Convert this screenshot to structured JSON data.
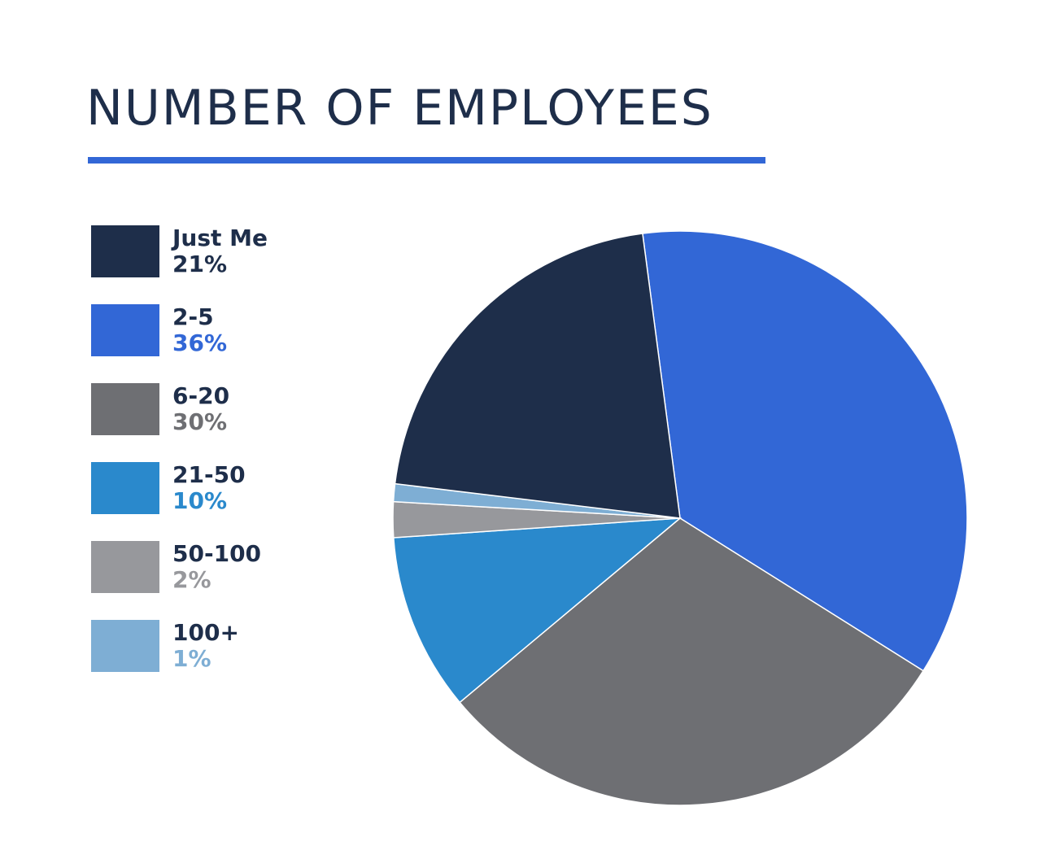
{
  "chart_data": {
    "type": "pie",
    "title": "NUMBER OF EMPLOYEES",
    "legend_position": "left",
    "accent_color": "#3267d6",
    "slices": [
      {
        "label": "Just Me",
        "value": 21,
        "value_label": "21%",
        "color": "#1e2e4a",
        "text_color": "#1e2e4a"
      },
      {
        "label": "2-5",
        "value": 36,
        "value_label": "36%",
        "color": "#3267d6",
        "text_color": "#3267d6"
      },
      {
        "label": "6-20",
        "value": 30,
        "value_label": "30%",
        "color": "#6e6f73",
        "text_color": "#6e6f73"
      },
      {
        "label": "21-50",
        "value": 10,
        "value_label": "10%",
        "color": "#2a89cc",
        "text_color": "#2a89cc"
      },
      {
        "label": "50-100",
        "value": 2,
        "value_label": "2%",
        "color": "#97989c",
        "text_color": "#97989c"
      },
      {
        "label": "100+",
        "value": 1,
        "value_label": "1%",
        "color": "#7eaed4",
        "text_color": "#7eaed4"
      }
    ]
  }
}
